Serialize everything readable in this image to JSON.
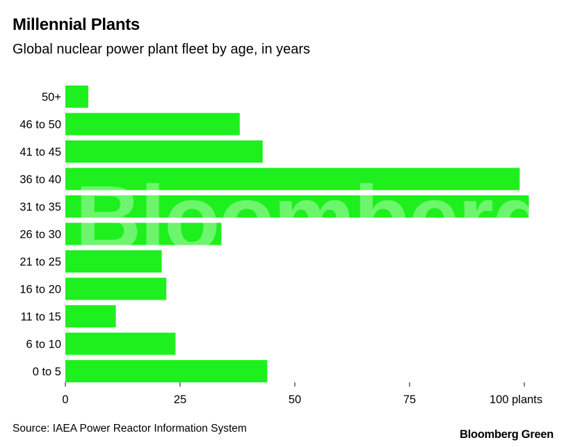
{
  "header": {
    "title": "Millennial Plants",
    "subtitle": "Global nuclear power plant fleet by age, in years"
  },
  "footer": {
    "source": "Source: IAEA Power Reactor Information System",
    "brand": "Bloomberg Green"
  },
  "watermark": "Bloomberg",
  "colors": {
    "bar": "#1ef01e",
    "axis_text": "#000000"
  },
  "chart_data": {
    "type": "bar",
    "orientation": "horizontal",
    "title": "Millennial Plants",
    "subtitle": "Global nuclear power plant fleet by age, in years",
    "categories": [
      "50+",
      "46 to 50",
      "41 to 45",
      "36 to 40",
      "31 to 35",
      "26 to 30",
      "21 to 25",
      "16 to 20",
      "11 to 15",
      "6 to 10",
      "0 to 5"
    ],
    "values": [
      5,
      38,
      43,
      99,
      101,
      34,
      21,
      22,
      11,
      24,
      44
    ],
    "xlim": [
      0,
      105
    ],
    "xticks": [
      0,
      25,
      50,
      75,
      100
    ],
    "xtick_labels": [
      "0",
      "25",
      "50",
      "75",
      "100 plants"
    ],
    "grid": false
  }
}
